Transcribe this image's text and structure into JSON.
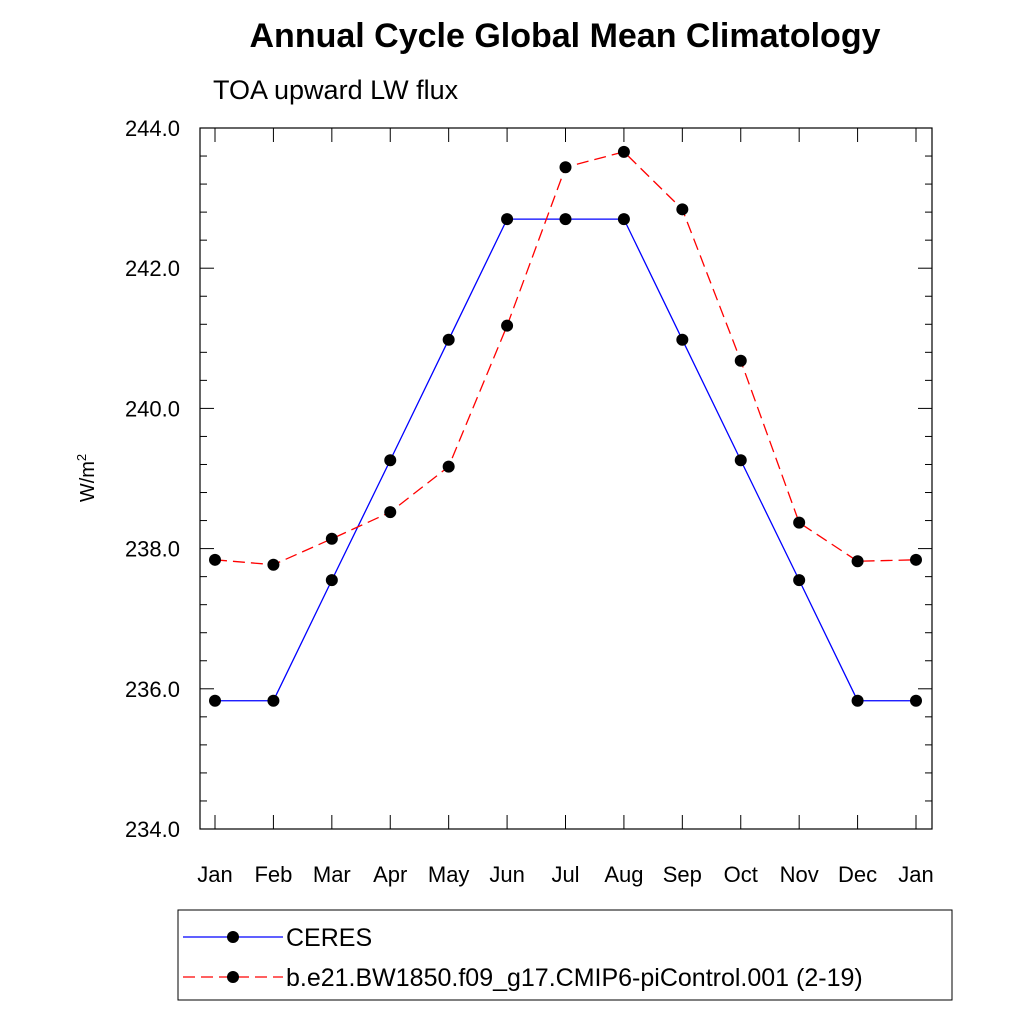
{
  "chart_data": {
    "type": "line",
    "title": "Annual Cycle Global Mean Climatology",
    "subtitle": "TOA upward LW flux",
    "xlabel": "",
    "ylabel": "W/m",
    "ylabel_superscript": "2",
    "categories": [
      "Jan",
      "Feb",
      "Mar",
      "Apr",
      "May",
      "Jun",
      "Jul",
      "Aug",
      "Sep",
      "Oct",
      "Nov",
      "Dec",
      "Jan"
    ],
    "ylim": [
      234.0,
      244.0
    ],
    "yticks": [
      "234.0",
      "236.0",
      "238.0",
      "240.0",
      "242.0",
      "244.0"
    ],
    "grid": false,
    "legend_position": "bottom",
    "series": [
      {
        "name": "CERES",
        "color": "#0000ff",
        "dash": "solid",
        "values": [
          235.83,
          235.83,
          237.55,
          239.26,
          240.98,
          242.7,
          242.7,
          242.7,
          240.98,
          239.26,
          237.55,
          235.83,
          235.83
        ]
      },
      {
        "name": "b.e21.BW1850.f09_g17.CMIP6-piControl.001 (2-19)",
        "color": "#ff0000",
        "dash": "dashed",
        "values": [
          237.84,
          237.77,
          238.14,
          238.52,
          239.17,
          241.18,
          243.44,
          243.66,
          242.84,
          240.68,
          238.37,
          237.82,
          237.84
        ]
      }
    ]
  }
}
